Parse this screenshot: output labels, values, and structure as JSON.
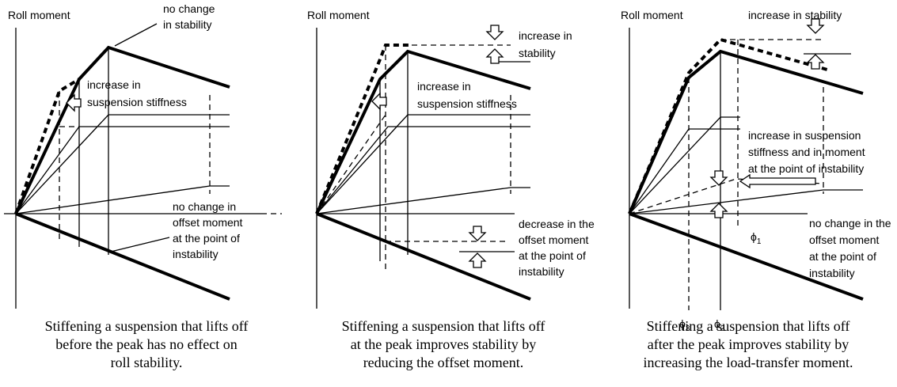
{
  "panels": [
    {
      "axis_label": "Roll moment",
      "annotations": [
        [
          "no change",
          "in stability"
        ],
        [
          "increase in",
          "suspension stiffness"
        ],
        [
          "no change in",
          "offset moment",
          "at the point of",
          "instability"
        ]
      ],
      "caption": [
        "Stiffening a suspension that lifts off",
        "before the peak has no effect on",
        "roll stability."
      ]
    },
    {
      "axis_label": "Roll moment",
      "annotations": [
        [
          "increase in",
          "stability"
        ],
        [
          "increase in",
          "suspension stiffness"
        ],
        [
          "decrease in the",
          "offset moment",
          "at the point of",
          "instability"
        ]
      ],
      "caption": [
        "Stiffening a suspension that lifts off",
        "at the peak improves stability by",
        "reducing the offset moment."
      ]
    },
    {
      "axis_label": "Roll moment",
      "annotations": [
        [
          "increase in stability"
        ],
        [
          "increase in suspension",
          "stiffness and in moment",
          "at the point of instability"
        ],
        [
          "no change in the",
          "offset moment",
          "at the point of",
          "instability"
        ]
      ],
      "angles": [
        {
          "symbol": "ϕ",
          "sub": "1"
        },
        {
          "symbol": "ϕ",
          "sub": "3"
        },
        {
          "symbol": "ϕ",
          "sub": "2"
        }
      ],
      "caption": [
        "Stiffening a suspension that lifts off",
        "after the peak improves stability by",
        "increasing the load-transfer moment."
      ]
    }
  ]
}
